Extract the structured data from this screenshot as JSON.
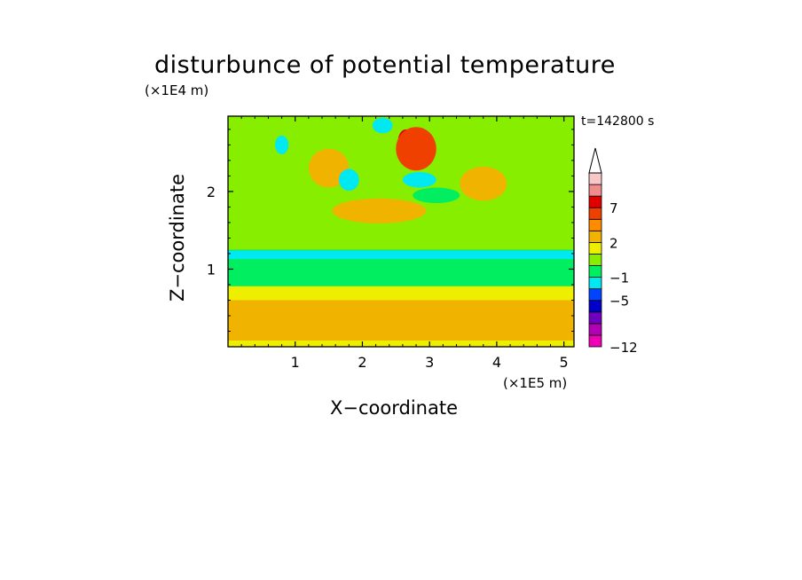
{
  "chart_data": {
    "type": "heatmap",
    "title": "disturbunce of potential temperature",
    "xlabel": "X−coordinate",
    "ylabel": "Z−coordinate",
    "x_multiplier": "(×1E5 m)",
    "y_multiplier": "(×1E4 m)",
    "time_label": "t=142800 s",
    "xlim": [
      0,
      5.15
    ],
    "ylim": [
      0,
      2.97
    ],
    "x_ticks": [
      {
        "value": 1,
        "label": "1"
      },
      {
        "value": 2,
        "label": "2"
      },
      {
        "value": 3,
        "label": "3"
      },
      {
        "value": 4,
        "label": "4"
      },
      {
        "value": 5,
        "label": "5"
      }
    ],
    "y_ticks": [
      {
        "value": 1,
        "label": "1"
      },
      {
        "value": 2,
        "label": "2"
      }
    ],
    "colorbar": {
      "levels": [
        -12,
        -11,
        -9,
        -7,
        -5,
        -3,
        -1,
        0,
        1,
        2,
        3,
        5,
        7,
        9,
        11
      ],
      "labeled_levels": [
        {
          "value": 7,
          "label": "7"
        },
        {
          "value": 2,
          "label": "2"
        },
        {
          "value": -1,
          "label": "−1"
        },
        {
          "value": -5,
          "label": "−5"
        },
        {
          "value": -12,
          "label": "−12"
        }
      ],
      "colors": [
        "#ee00b4",
        "#b400b4",
        "#7000c0",
        "#0000cc",
        "#0044ff",
        "#00e8f0",
        "#00ee60",
        "#88ee00",
        "#eeee00",
        "#f0b400",
        "#ff8c00",
        "#f04000",
        "#e00000",
        "#f08c8c",
        "#f8c8c8"
      ],
      "extend_top": true
    },
    "field": {
      "background_level": 0,
      "horizontal_bands": [
        {
          "z_range": [
            0.0,
            0.08
          ],
          "level": 1
        },
        {
          "z_range": [
            0.08,
            0.6
          ],
          "level": 2
        },
        {
          "z_range": [
            0.6,
            0.78
          ],
          "level": 1
        },
        {
          "z_range": [
            0.78,
            1.25
          ],
          "level": -1
        },
        {
          "z_range": [
            1.13,
            1.24
          ],
          "level": -3
        }
      ],
      "upper_regions": [
        {
          "x": 2.65,
          "z": 2.65,
          "rx": 0.12,
          "rz": 0.15,
          "level": 7
        },
        {
          "x": 2.8,
          "z": 2.55,
          "rx": 0.3,
          "rz": 0.28,
          "level": 5
        },
        {
          "x": 2.25,
          "z": 1.75,
          "rx": 0.7,
          "rz": 0.16,
          "level": 2
        },
        {
          "x": 1.5,
          "z": 2.3,
          "rx": 0.3,
          "rz": 0.25,
          "level": 2
        },
        {
          "x": 3.8,
          "z": 2.1,
          "rx": 0.35,
          "rz": 0.22,
          "level": 2
        },
        {
          "x": 2.3,
          "z": 2.85,
          "rx": 0.15,
          "rz": 0.1,
          "level": -3
        },
        {
          "x": 2.85,
          "z": 2.15,
          "rx": 0.25,
          "rz": 0.1,
          "level": -3
        },
        {
          "x": 1.8,
          "z": 2.15,
          "rx": 0.15,
          "rz": 0.14,
          "level": -3
        },
        {
          "x": 3.1,
          "z": 1.95,
          "rx": 0.35,
          "rz": 0.1,
          "level": -1
        },
        {
          "x": 0.8,
          "z": 2.6,
          "rx": 0.1,
          "rz": 0.12,
          "level": -3
        }
      ]
    }
  }
}
